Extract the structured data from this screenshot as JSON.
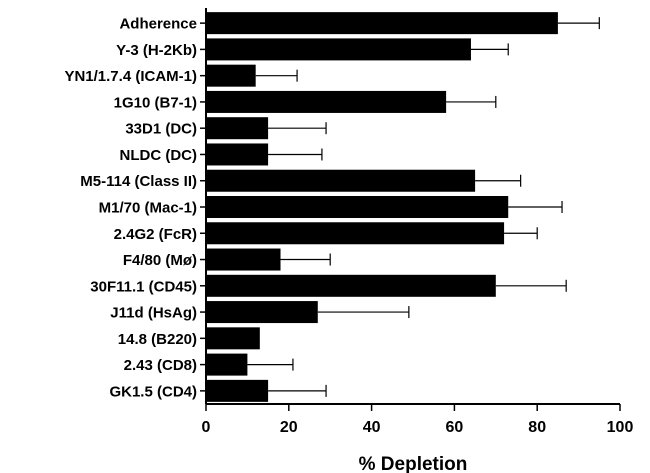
{
  "chart_data": {
    "type": "bar",
    "orientation": "horizontal",
    "categories": [
      "Adherence",
      "Y-3 (H-2Kb)",
      "YN1/1.7.4 (ICAM-1)",
      "1G10 (B7-1)",
      "33D1 (DC)",
      "NLDC (DC)",
      "M5-114 (Class II)",
      "M1/70 (Mac-1)",
      "2.4G2 (FcR)",
      "F4/80 (Mø)",
      "30F11.1 (CD45)",
      "J11d (HsAg)",
      "14.8 (B220)",
      "2.43 (CD8)",
      "GK1.5 (CD4)"
    ],
    "values": [
      85,
      64,
      12,
      58,
      15,
      15,
      65,
      73,
      72,
      18,
      70,
      27,
      13,
      10,
      15
    ],
    "errors": [
      10,
      9,
      10,
      12,
      14,
      13,
      11,
      13,
      8,
      12,
      17,
      22,
      0,
      11,
      14
    ],
    "xlabel": "% Depletion",
    "xlim": [
      0,
      100
    ],
    "xticks": [
      "0",
      "20",
      "40",
      "60",
      "80",
      "100"
    ],
    "bar_color": "#000000",
    "grid": false
  }
}
